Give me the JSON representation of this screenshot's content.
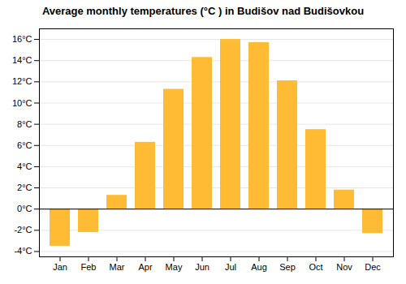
{
  "chart_data": {
    "type": "bar",
    "title": "Average monthly temperatures (°C ) in Budišov nad Budišovkou",
    "categories": [
      "Jan",
      "Feb",
      "Mar",
      "Apr",
      "May",
      "Jun",
      "Jul",
      "Aug",
      "Sep",
      "Oct",
      "Nov",
      "Dec"
    ],
    "values": [
      -3.5,
      -2.2,
      1.3,
      6.3,
      11.3,
      14.3,
      16.0,
      15.7,
      12.1,
      7.5,
      1.8,
      -2.3
    ],
    "color": "#FFBB33",
    "ylim": [
      -4.5,
      17.0
    ],
    "yticks": [
      {
        "value": -4,
        "label": "-4°C"
      },
      {
        "value": -2,
        "label": "-2°C"
      },
      {
        "value": 0,
        "label": "0°C"
      },
      {
        "value": 2,
        "label": "2°C"
      },
      {
        "value": 4,
        "label": "4°C"
      },
      {
        "value": 6,
        "label": "6°C"
      },
      {
        "value": 8,
        "label": "8°C"
      },
      {
        "value": 10,
        "label": "10°C"
      },
      {
        "value": 12,
        "label": "12°C"
      },
      {
        "value": 14,
        "label": "14°C"
      },
      {
        "value": 16,
        "label": "16°C"
      }
    ],
    "grid": true
  }
}
